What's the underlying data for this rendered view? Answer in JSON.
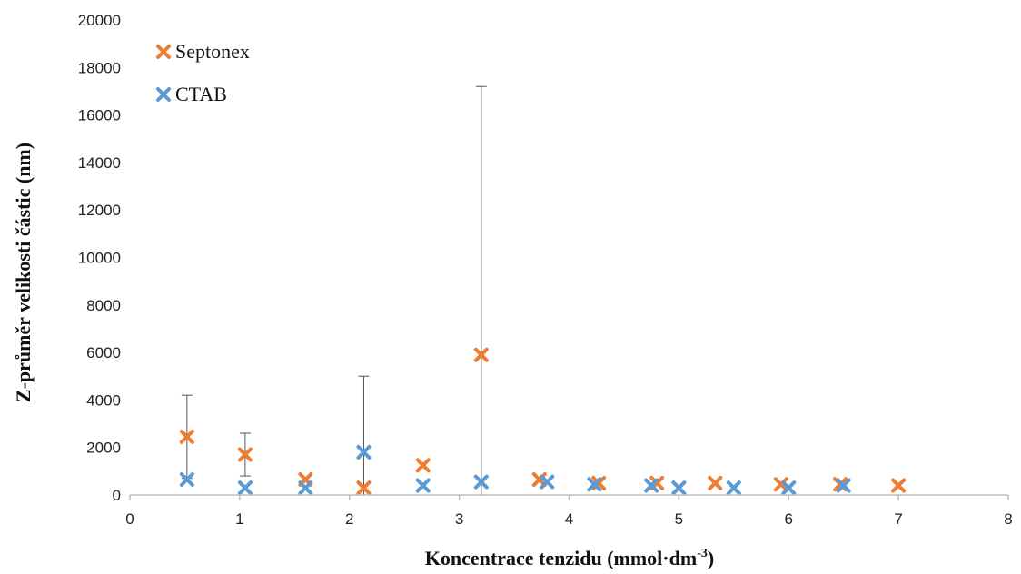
{
  "chart_data": {
    "type": "scatter",
    "xlabel_main": "Koncentrace tenzidu (mmol·dm",
    "xlabel_sup": "-3",
    "xlabel_end": ")",
    "ylabel": "Z-průměr velikosti částic (nm)",
    "xlim": [
      0,
      8
    ],
    "ylim": [
      0,
      20000
    ],
    "xticks": [
      0,
      1,
      2,
      3,
      4,
      5,
      6,
      7,
      8
    ],
    "yticks": [
      0,
      2000,
      4000,
      6000,
      8000,
      10000,
      12000,
      14000,
      16000,
      18000,
      20000
    ],
    "grid": false,
    "legend_position": "top-left",
    "series": [
      {
        "name": "Septonex",
        "color": "#ED7D31",
        "marker": "x",
        "points": [
          {
            "x": 0.52,
            "y": 2450,
            "err_hi": 4200
          },
          {
            "x": 1.05,
            "y": 1700,
            "err_hi": 2600
          },
          {
            "x": 1.6,
            "y": 650
          },
          {
            "x": 2.13,
            "y": 300,
            "err_hi": 5000
          },
          {
            "x": 2.67,
            "y": 1250
          },
          {
            "x": 3.2,
            "y": 5900,
            "err_hi": 17200
          },
          {
            "x": 3.73,
            "y": 650
          },
          {
            "x": 4.27,
            "y": 500
          },
          {
            "x": 4.8,
            "y": 500
          },
          {
            "x": 5.33,
            "y": 500
          },
          {
            "x": 5.93,
            "y": 450
          },
          {
            "x": 6.47,
            "y": 450
          },
          {
            "x": 7.0,
            "y": 400
          }
        ]
      },
      {
        "name": "CTAB",
        "color": "#5B9BD5",
        "marker": "x",
        "points": [
          {
            "x": 0.52,
            "y": 650
          },
          {
            "x": 1.05,
            "y": 300
          },
          {
            "x": 1.6,
            "y": 300
          },
          {
            "x": 2.13,
            "y": 1800
          },
          {
            "x": 2.67,
            "y": 400
          },
          {
            "x": 3.2,
            "y": 550
          },
          {
            "x": 3.8,
            "y": 550
          },
          {
            "x": 4.23,
            "y": 450
          },
          {
            "x": 4.75,
            "y": 400
          },
          {
            "x": 5.0,
            "y": 300
          },
          {
            "x": 5.5,
            "y": 300
          },
          {
            "x": 6.0,
            "y": 300
          },
          {
            "x": 6.5,
            "y": 400
          }
        ]
      }
    ]
  }
}
